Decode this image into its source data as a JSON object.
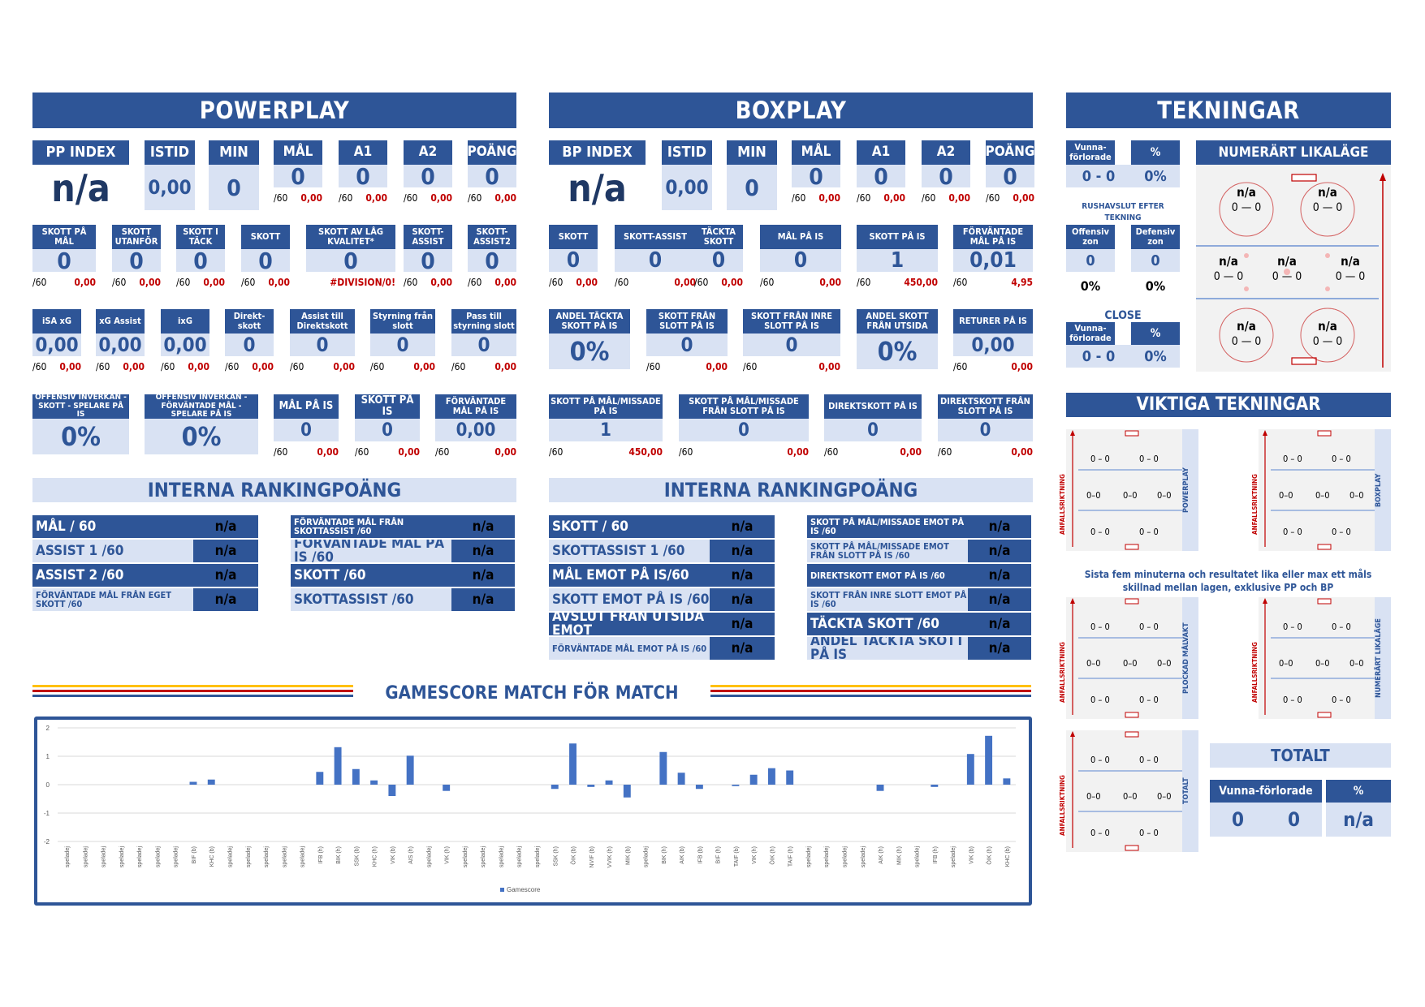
{
  "powerplay": {
    "title": "POWERPLAY",
    "pp_index": {
      "label": "PP INDEX",
      "value": "n/a"
    },
    "istid": {
      "label": "ISTID",
      "value": "0,00"
    },
    "min": {
      "label": "MIN",
      "value": "0"
    },
    "top": [
      {
        "label": "MÅL",
        "value": "0",
        "per": "/60",
        "red": "0,00"
      },
      {
        "label": "A1",
        "value": "0",
        "per": "/60",
        "red": "0,00"
      },
      {
        "label": "A2",
        "value": "0",
        "per": "/60",
        "red": "0,00"
      },
      {
        "label": "POÄNG",
        "value": "0",
        "per": "/60",
        "red": "0,00"
      }
    ],
    "row2": [
      {
        "label": "SKOTT PÅ MÅL",
        "value": "0",
        "per": "/60",
        "red": "0,00"
      },
      {
        "label": "SKOTT UTANFÖR",
        "value": "0",
        "per": "/60",
        "red": "0,00"
      },
      {
        "label": "SKOTT I TÄCK",
        "value": "0",
        "per": "/60",
        "red": "0,00"
      },
      {
        "label": "SKOTT",
        "value": "0",
        "per": "/60",
        "red": "0,00"
      },
      {
        "label": "SKOTT AV LÅG KVALITET*",
        "value": "0",
        "per": "",
        "red": "#DIVISION/0!"
      },
      {
        "label": "SKOTT-ASSIST",
        "value": "0",
        "per": "/60",
        "red": "0,00"
      },
      {
        "label": "SKOTT-ASSIST2",
        "value": "0",
        "per": "/60",
        "red": "0,00"
      }
    ],
    "row3": [
      {
        "label": "iSA xG",
        "value": "0,00",
        "per": "/60",
        "red": "0,00"
      },
      {
        "label": "xG Assist",
        "value": "0,00",
        "per": "/60",
        "red": "0,00"
      },
      {
        "label": "ixG",
        "value": "0,00",
        "per": "/60",
        "red": "0,00"
      },
      {
        "label": "Direkt-skott",
        "value": "0",
        "per": "/60",
        "red": "0,00"
      },
      {
        "label": "Assist till Direktskott",
        "value": "0",
        "per": "/60",
        "red": "0,00"
      },
      {
        "label": "Styrning från slott",
        "value": "0",
        "per": "/60",
        "red": "0,00"
      },
      {
        "label": "Pass till styrning slott",
        "value": "0",
        "per": "/60",
        "red": "0,00"
      }
    ],
    "row4": [
      {
        "label": "OFFENSIV INVERKAN - SKOTT - SPELARE PÅ IS",
        "value": "0%"
      },
      {
        "label": "OFFENSIV INVERKAN - FÖRVÄNTADE MÅL - SPELARE PÅ IS",
        "value": "0%"
      },
      {
        "label": "MÅL PÅ IS",
        "value": "0",
        "per": "/60",
        "red": "0,00"
      },
      {
        "label": "SKOTT PÅ IS",
        "value": "0",
        "per": "/60",
        "red": "0,00"
      },
      {
        "label": "FÖRVÄNTADE MÅL PÅ IS",
        "value": "0,00",
        "per": "/60",
        "red": "0,00"
      }
    ],
    "ranking_title": "INTERNA RANKINGPOÄNG",
    "ranking_left": [
      {
        "label": "MÅL / 60",
        "value": "n/a"
      },
      {
        "label": "ASSIST 1 /60",
        "value": "n/a"
      },
      {
        "label": "ASSIST 2 /60",
        "value": "n/a"
      },
      {
        "label": "FÖRVÄNTADE MÅL FRÅN EGET SKOTT /60",
        "value": "n/a"
      }
    ],
    "ranking_right": [
      {
        "label": "FÖRVÄNTADE MÅL FRÅN SKOTTASSIST /60",
        "value": "n/a"
      },
      {
        "label": "FÖRVÄNTADE MÅL PÅ IS /60",
        "value": "n/a"
      },
      {
        "label": "SKOTT /60",
        "value": "n/a"
      },
      {
        "label": "SKOTTASSIST /60",
        "value": "n/a"
      }
    ]
  },
  "boxplay": {
    "title": "BOXPLAY",
    "bp_index": {
      "label": "BP INDEX",
      "value": "n/a"
    },
    "istid": {
      "label": "ISTID",
      "value": "0,00"
    },
    "min": {
      "label": "MIN",
      "value": "0"
    },
    "top": [
      {
        "label": "MÅL",
        "value": "0",
        "per": "/60",
        "red": "0,00"
      },
      {
        "label": "A1",
        "value": "0",
        "per": "/60",
        "red": "0,00"
      },
      {
        "label": "A2",
        "value": "0",
        "per": "/60",
        "red": "0,00"
      },
      {
        "label": "POÄNG",
        "value": "0",
        "per": "/60",
        "red": "0,00"
      }
    ],
    "row2": [
      {
        "label": "SKOTT",
        "value": "0",
        "per": "/60",
        "red": "0,00"
      },
      {
        "label": "SKOTT-ASSIST",
        "value": "0",
        "per": "/60",
        "red": "0,00"
      },
      {
        "label": "TÄCKTA SKOTT",
        "value": "0",
        "per": "/60",
        "red": "0,00"
      },
      {
        "label": "MÅL PÅ IS",
        "value": "0",
        "per": "/60",
        "red": "0,00"
      },
      {
        "label": "SKOTT PÅ IS",
        "value": "1",
        "per": "/60",
        "red": "450,00"
      },
      {
        "label": "FÖRVÄNTADE MÅL PÅ IS",
        "value": "0,01",
        "per": "/60",
        "red": "4,95"
      }
    ],
    "row3": [
      {
        "label": "ANDEL TÄCKTA SKOTT PÅ IS",
        "value": "0%"
      },
      {
        "label": "SKOTT FRÅN SLOTT PÅ IS",
        "value": "0",
        "per": "/60",
        "red": "0,00"
      },
      {
        "label": "SKOTT FRÅN INRE SLOTT PÅ IS",
        "value": "0",
        "per": "/60",
        "red": "0,00"
      },
      {
        "label": "ANDEL SKOTT FRÅN UTSIDA",
        "value": "0%"
      },
      {
        "label": "RETURER PÅ IS",
        "value": "0,00",
        "per": "/60",
        "red": "0,00"
      }
    ],
    "row4": [
      {
        "label": "SKOTT PÅ MÅL/MISSADE PÅ IS",
        "value": "1",
        "per": "/60",
        "red": "450,00"
      },
      {
        "label": "SKOTT PÅ MÅL/MISSADE FRÅN SLOTT PÅ IS",
        "value": "0",
        "per": "/60",
        "red": "0,00"
      },
      {
        "label": "DIREKTSKOTT PÅ IS",
        "value": "0",
        "per": "/60",
        "red": "0,00"
      },
      {
        "label": "DIREKTSKOTT FRÅN SLOTT PÅ IS",
        "value": "0",
        "per": "/60",
        "red": "0,00"
      }
    ],
    "ranking_title": "INTERNA RANKINGPOÄNG",
    "ranking_left": [
      {
        "label": "SKOTT / 60",
        "value": "n/a"
      },
      {
        "label": "SKOTTASSIST 1 /60",
        "value": "n/a"
      },
      {
        "label": "MÅL EMOT PÅ IS/60",
        "value": "n/a"
      },
      {
        "label": "SKOTT EMOT PÅ IS /60",
        "value": "n/a"
      },
      {
        "label": "AVSLUT FRÅN UTSIDA EMOT",
        "value": "n/a"
      },
      {
        "label": "FÖRVÄNTADE MÅL EMOT PÅ IS /60",
        "value": "n/a"
      }
    ],
    "ranking_right": [
      {
        "label": "SKOTT PÅ MÅL/MISSADE EMOT PÅ IS /60",
        "value": "n/a"
      },
      {
        "label": "SKOTT PÅ MÅL/MISSADE EMOT FRÅN SLOTT PÅ IS /60",
        "value": "n/a"
      },
      {
        "label": "DIREKTSKOTT EMOT PÅ IS /60",
        "value": "n/a"
      },
      {
        "label": "SKOTT FRÅN INRE SLOTT EMOT PÅ IS /60",
        "value": "n/a"
      },
      {
        "label": "TÄCKTA SKOTT /60",
        "value": "n/a"
      },
      {
        "label": "ANDEL TÄCKTA SKOTT PÅ IS",
        "value": "n/a"
      }
    ]
  },
  "tekningar": {
    "title": "TEKNINGAR",
    "vunna_label": "Vunna-förlorade",
    "pct_label": "%",
    "vunna_value": "0 - 0",
    "pct_value": "0%",
    "rush_label": "RUSHAVSLUT EFTER TEKNING",
    "offensiv_label": "Offensiv zon",
    "defensiv_label": "Defensiv zon",
    "offensiv_value": "0",
    "defensiv_value": "0",
    "offensiv_pct": "0%",
    "defensiv_pct": "0%",
    "close_label": "CLOSE",
    "close_vunna_label": "Vunna-förlorade",
    "close_pct_label": "%",
    "close_vunna_value": "0 - 0",
    "close_pct_value": "0%",
    "numerart_title": "NUMERÄRT LIKALÄGE",
    "numerart_circles": [
      {
        "top": "n/a",
        "score": "0 — 0"
      },
      {
        "top": "n/a",
        "score": "0 — 0"
      },
      {
        "top": "n/a",
        "score": "0 — 0"
      },
      {
        "top": "n/a",
        "score": "0 — 0"
      },
      {
        "top": "n/a",
        "score": "0 — 0"
      },
      {
        "top": "n/a",
        "score": "0 — 0"
      },
      {
        "top": "n/a",
        "score": "0 — 0"
      }
    ]
  },
  "viktiga": {
    "title": "VIKTIGA TEKNINGAR",
    "arrow_label": "ANFALLSRIKTNING",
    "note": "Sista fem minuterna och resultatet lika eller max ett måls skillnad mellan lagen, exklusive PP och BP",
    "rinks": [
      {
        "label": "POWERPLAY",
        "score": "0 – 0",
        "score_mid": "0–0"
      },
      {
        "label": "BOXPLAY",
        "score": "0 – 0",
        "score_mid": "0–0"
      },
      {
        "label": "PLOCKAD MÅLVAKT",
        "score": "0 – 0",
        "score_mid": "0–0"
      },
      {
        "label": "NUMERÄRT LIKALÄGE",
        "score": "0 – 0",
        "score_mid": "0–0"
      },
      {
        "label": "TOTALT",
        "score": "0 – 0",
        "score_mid": "0–0"
      }
    ],
    "totalt_title": "TOTALT",
    "totalt_vunna_label": "Vunna-förlorade",
    "totalt_pct_label": "%",
    "totalt_v1": "0",
    "totalt_v2": "0",
    "totalt_pct": "n/a"
  },
  "gamescore": {
    "title": "GAMESCORE MATCH FÖR MATCH",
    "stripe_colors": [
      "#ffc000",
      "#c00000",
      "#2e5597"
    ]
  },
  "chart_data": {
    "type": "bar",
    "title": "",
    "ylim": [
      -2,
      2
    ],
    "yticks": [
      "2",
      "1",
      "0",
      "-1",
      "-2"
    ],
    "legend": "Gamescore",
    "legend_position": "bottom",
    "grid": true,
    "color": "#4472c4",
    "categories": [
      "speladej",
      "speladej",
      "speladej",
      "speladej",
      "speladej",
      "speladej",
      "speladej",
      "BIF (b)",
      "KHC (b)",
      "speladej",
      "speladej",
      "speladej",
      "speladej",
      "speladej",
      "IFB (h)",
      "BIK (h)",
      "SSK (b)",
      "KHC (h)",
      "VIK (b)",
      "AIS (h)",
      "speladej",
      "VIK (h)",
      "speladej",
      "speladej",
      "speladej",
      "speladej",
      "speladej",
      "SSK (h)",
      "ÖIK (b)",
      "NVIF (b)",
      "VVIK (h)",
      "MIK (b)",
      "speladej",
      "BIK (h)",
      "AIK (b)",
      "IFB (b)",
      "BIF (h)",
      "TAIF (b)",
      "VIK (h)",
      "ÖIK (h)",
      "TAIF (h)",
      "speladej",
      "speladej",
      "speladej",
      "speladej",
      "AIK (h)",
      "MIK (h)",
      "speladej",
      "IFB (h)",
      "speladej",
      "VIK (b)",
      "ÖIK (h)",
      "KHC (b)"
    ],
    "series": [
      {
        "name": "Gamescore",
        "values": [
          0,
          0,
          0,
          0,
          0,
          0,
          0,
          0.1,
          0.18,
          0,
          0,
          0,
          0,
          0,
          0.45,
          1.32,
          0.55,
          0.15,
          -0.4,
          1.02,
          0,
          -0.22,
          0,
          0,
          0,
          0,
          0,
          -0.15,
          1.45,
          -0.08,
          0.15,
          -0.45,
          0,
          1.15,
          0.42,
          -0.15,
          0,
          -0.05,
          0.35,
          0.58,
          0.5,
          0,
          0,
          0,
          0,
          -0.22,
          0,
          0,
          -0.08,
          0,
          1.08,
          1.72,
          0.22
        ]
      }
    ]
  }
}
